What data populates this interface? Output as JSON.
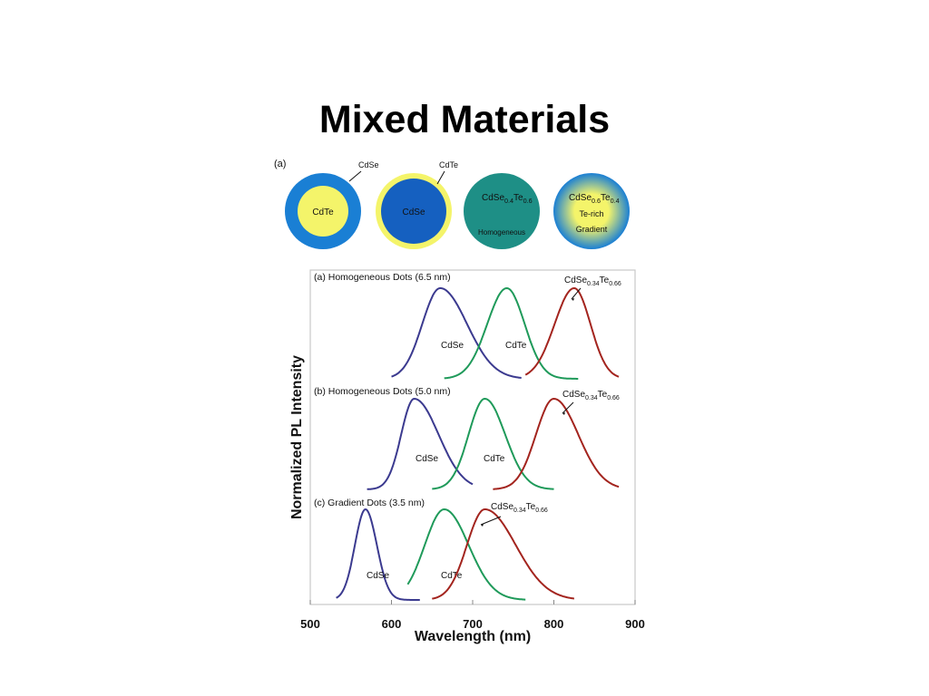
{
  "slide": {
    "title": "Mixed Materials"
  },
  "schematic": {
    "panel_label": "(a)",
    "dots": [
      {
        "core_label": "CdTe",
        "shell_label": "CdSe",
        "shell_color": "#1a7fd4",
        "core_color": "#f4f46a"
      },
      {
        "core_label": "CdSe",
        "shell_label": "CdTe",
        "shell_color": "#f4f46a",
        "core_color": "#1560c0"
      },
      {
        "label_main": "CdSe",
        "sub1": "0.4",
        "label_te": "Te",
        "sub2": "0.6",
        "label_below": "Homogeneous",
        "color": "#1e8f86"
      },
      {
        "label_main": "CdSe",
        "sub1": "0.6",
        "label_te": "Te",
        "sub2": "0.4",
        "label_mid": "Te-rich",
        "label_below": "Gradient",
        "outer_color": "#1a7fd4",
        "inner_color": "#f4f46a"
      }
    ]
  },
  "chart_data": {
    "type": "line",
    "xlabel": "Wavelength (nm)",
    "ylabel": "Normalized PL Intensity",
    "xlim": [
      500,
      900
    ],
    "xticks": [
      "500",
      "600",
      "700",
      "800",
      "900"
    ],
    "colors": {
      "CdSe": "#3b3a8f",
      "CdTe": "#1f9a5a",
      "alloy": "#a3241e"
    },
    "panels": [
      {
        "title": "(a) Homogeneous Dots (6.5 nm)",
        "series": [
          {
            "name": "CdSe",
            "color_key": "CdSe",
            "peak": 660,
            "sigma_l": 22,
            "sigma_r": 33,
            "start": 600,
            "end": 760
          },
          {
            "name": "CdTe",
            "color_key": "CdTe",
            "peak": 742,
            "sigma_l": 24,
            "sigma_r": 22,
            "start": 665,
            "end": 830
          },
          {
            "name_main": "CdSe",
            "sub1": "0.34",
            "name_te": "Te",
            "sub2": "0.66",
            "color_key": "alloy",
            "peak": 825,
            "sigma_l": 24,
            "sigma_r": 20,
            "start": 765,
            "end": 880
          }
        ]
      },
      {
        "title": "(b) Homogeneous Dots (5.0 nm)",
        "series": [
          {
            "name": "CdSe",
            "color_key": "CdSe",
            "peak": 628,
            "sigma_l": 16,
            "sigma_r": 30,
            "start": 570,
            "end": 700
          },
          {
            "name": "CdTe",
            "color_key": "CdTe",
            "peak": 715,
            "sigma_l": 20,
            "sigma_r": 25,
            "start": 650,
            "end": 800
          },
          {
            "name_main": "CdSe",
            "sub1": "0.34",
            "name_te": "Te",
            "sub2": "0.66",
            "color_key": "alloy",
            "peak": 800,
            "sigma_l": 22,
            "sigma_r": 30,
            "start": 725,
            "end": 880
          }
        ]
      },
      {
        "title": "(c) Gradient Dots (3.5 nm)",
        "series": [
          {
            "name": "CdSe",
            "color_key": "CdSe",
            "peak": 568,
            "sigma_l": 13,
            "sigma_r": 14,
            "start": 532,
            "end": 635
          },
          {
            "name": "CdTe",
            "color_key": "CdTe",
            "peak": 665,
            "sigma_l": 24,
            "sigma_r": 30,
            "start": 620,
            "end": 765
          },
          {
            "name_main": "CdSe",
            "sub1": "0.34",
            "name_te": "Te",
            "sub2": "0.66",
            "color_key": "alloy",
            "peak": 715,
            "sigma_l": 22,
            "sigma_r": 38,
            "start": 650,
            "end": 825
          }
        ]
      }
    ]
  }
}
